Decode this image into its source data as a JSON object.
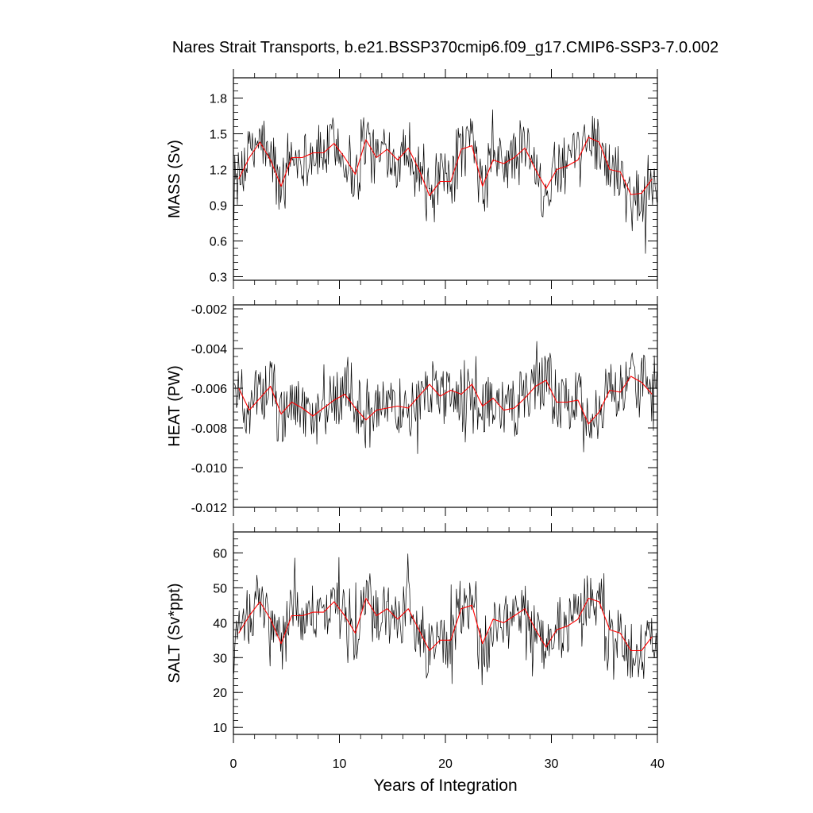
{
  "figure": {
    "title": "Nares Strait Transports, b.e21.BSSP370cmip6.f09_g17.CMIP6-SSP3-7.0.002",
    "xlabel": "Years of Integration",
    "x_ticks": [
      "0",
      "10",
      "20",
      "30",
      "40"
    ]
  },
  "chart_data": [
    {
      "type": "line",
      "ylabel": "MASS (Sv)",
      "xlim": [
        0,
        40
      ],
      "ylim": [
        0.27,
        1.97
      ],
      "y_ticks": [
        "0.3",
        "0.6",
        "0.9",
        "1.2",
        "1.5",
        "1.8"
      ],
      "y_tick_values": [
        0.3,
        0.6,
        0.9,
        1.2,
        1.5,
        1.8
      ],
      "series": [
        {
          "style": "monthly",
          "color": "#000000",
          "x": [],
          "values": []
        },
        {
          "style": "annual",
          "color": "#ff0000",
          "x": [
            0.5,
            1.5,
            2.5,
            3.5,
            4.5,
            5.5,
            6.5,
            7.5,
            8.5,
            9.5,
            10.5,
            11.5,
            12.5,
            13.5,
            14.5,
            15.5,
            16.5,
            17.5,
            18.5,
            19.5,
            20.5,
            21.5,
            22.5,
            23.5,
            24.5,
            25.5,
            26.5,
            27.5,
            28.5,
            29.5,
            30.5,
            31.5,
            32.5,
            33.5,
            34.5,
            35.5,
            36.5,
            37.5,
            38.5,
            39.5
          ],
          "values": [
            1.12,
            1.3,
            1.43,
            1.28,
            1.06,
            1.3,
            1.3,
            1.34,
            1.34,
            1.42,
            1.3,
            1.16,
            1.45,
            1.3,
            1.37,
            1.28,
            1.38,
            1.2,
            0.98,
            1.1,
            1.1,
            1.37,
            1.4,
            1.06,
            1.28,
            1.25,
            1.3,
            1.38,
            1.2,
            1.04,
            1.2,
            1.23,
            1.28,
            1.47,
            1.43,
            1.2,
            1.18,
            0.99,
            1.0,
            1.12
          ]
        }
      ]
    },
    {
      "type": "line",
      "ylabel": "HEAT (PW)",
      "xlim": [
        0,
        40
      ],
      "ylim": [
        -0.012,
        -0.0018
      ],
      "y_ticks": [
        "-0.012",
        "-0.010",
        "-0.008",
        "-0.006",
        "-0.004",
        "-0.002"
      ],
      "y_tick_values": [
        -0.012,
        -0.01,
        -0.008,
        -0.006,
        -0.004,
        -0.002
      ],
      "series": [
        {
          "style": "monthly",
          "color": "#000000",
          "x": [],
          "values": []
        },
        {
          "style": "annual",
          "color": "#ff0000",
          "x": [
            0.5,
            1.5,
            2.5,
            3.5,
            4.5,
            5.5,
            6.5,
            7.5,
            8.5,
            9.5,
            10.5,
            11.5,
            12.5,
            13.5,
            14.5,
            15.5,
            16.5,
            17.5,
            18.5,
            19.5,
            20.5,
            21.5,
            22.5,
            23.5,
            24.5,
            25.5,
            26.5,
            27.5,
            28.5,
            29.5,
            30.5,
            31.5,
            32.5,
            33.5,
            34.5,
            35.5,
            36.5,
            37.5,
            38.5,
            39.5
          ],
          "values": [
            -0.006,
            -0.0071,
            -0.0065,
            -0.0059,
            -0.0073,
            -0.0067,
            -0.007,
            -0.0074,
            -0.007,
            -0.0066,
            -0.0063,
            -0.007,
            -0.0076,
            -0.0071,
            -0.007,
            -0.0069,
            -0.007,
            -0.0064,
            -0.0058,
            -0.0064,
            -0.0061,
            -0.0063,
            -0.0058,
            -0.0069,
            -0.0065,
            -0.0071,
            -0.007,
            -0.0065,
            -0.0059,
            -0.0056,
            -0.0067,
            -0.0067,
            -0.0066,
            -0.0078,
            -0.0072,
            -0.0061,
            -0.0062,
            -0.0054,
            -0.0057,
            -0.0063
          ]
        }
      ]
    },
    {
      "type": "line",
      "ylabel": "SALT (Sv*ppt)",
      "xlim": [
        0,
        40
      ],
      "ylim": [
        8,
        66
      ],
      "y_ticks": [
        "10",
        "20",
        "30",
        "40",
        "50",
        "60"
      ],
      "y_tick_values": [
        10,
        20,
        30,
        40,
        50,
        60
      ],
      "series": [
        {
          "style": "monthly",
          "color": "#000000",
          "x": [],
          "values": []
        },
        {
          "style": "annual",
          "color": "#ff0000",
          "x": [
            0.5,
            1.5,
            2.5,
            3.5,
            4.5,
            5.5,
            6.5,
            7.5,
            8.5,
            9.5,
            10.5,
            11.5,
            12.5,
            13.5,
            14.5,
            15.5,
            16.5,
            17.5,
            18.5,
            19.5,
            20.5,
            21.5,
            22.5,
            23.5,
            24.5,
            25.5,
            26.5,
            27.5,
            28.5,
            29.5,
            30.5,
            31.5,
            32.5,
            33.5,
            34.5,
            35.5,
            36.5,
            37.5,
            38.5,
            39.5
          ],
          "values": [
            37,
            42,
            46,
            41,
            34,
            42,
            42,
            43,
            43,
            46,
            42,
            37,
            47,
            42,
            44,
            41,
            44,
            38,
            32,
            35,
            35,
            44,
            45,
            34,
            41,
            40,
            42,
            44,
            38,
            33,
            38,
            39,
            41,
            47,
            46,
            38,
            37,
            32,
            32,
            36
          ]
        }
      ]
    }
  ]
}
